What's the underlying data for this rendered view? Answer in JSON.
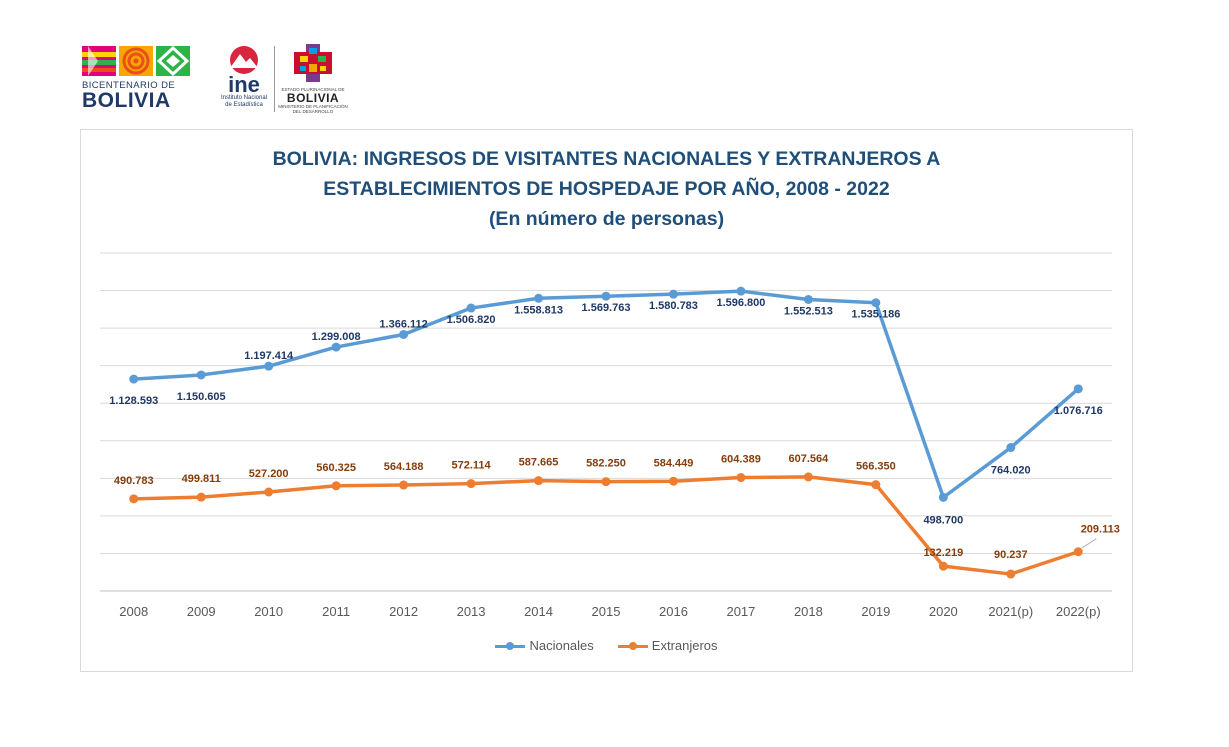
{
  "logos": {
    "bicentenario": {
      "line1": "BICENTENARIO DE",
      "line2": "BOLIVIA"
    },
    "ine": {
      "word": "ine",
      "sub1": "Instituto Nacional",
      "sub2": "de Estadística"
    },
    "estado": {
      "line1": "ESTADO PLURINACIONAL DE",
      "line2": "BOLIVIA",
      "line3": "MINISTERIO DE PLANIFICACIÓN DEL DESARROLLO"
    }
  },
  "colors": {
    "nacionales": "#5b9bd5",
    "extranjeros": "#ed7d31",
    "title": "#1f4e79",
    "label_nac": "#1f3864",
    "label_ext": "#843c0c"
  },
  "chart_data": {
    "type": "line",
    "title_lines": [
      "BOLIVIA: INGRESOS DE VISITANTES NACIONALES Y EXTRANJEROS A",
      "ESTABLECIMIENTOS DE HOSPEDAJE POR AÑO, 2008 - 2022",
      "(En número de personas)"
    ],
    "categories": [
      "2008",
      "2009",
      "2010",
      "2011",
      "2012",
      "2013",
      "2014",
      "2015",
      "2016",
      "2017",
      "2018",
      "2019",
      "2020",
      "2021(p)",
      "2022(p)"
    ],
    "ylim": [
      0,
      1800000
    ],
    "grid": true,
    "y_axis_labels": "hidden",
    "legend_position": "bottom",
    "series": [
      {
        "name": "Nacionales",
        "values": [
          1128593,
          1150605,
          1197414,
          1299008,
          1366112,
          1506820,
          1558813,
          1569763,
          1580783,
          1596800,
          1552513,
          1535186,
          498700,
          764020,
          1076716
        ],
        "labels": [
          "1.128.593",
          "1.150.605",
          "1.197.414",
          "1.299.008",
          "1.366.112",
          "1.506.820",
          "1.558.813",
          "1.569.763",
          "1.580.783",
          "1.596.800",
          "1.552.513",
          "1.535.186",
          "498.700",
          "764.020",
          "1.076.716"
        ]
      },
      {
        "name": "Extranjeros",
        "values": [
          490783,
          499811,
          527200,
          560325,
          564188,
          572114,
          587665,
          582250,
          584449,
          604389,
          607564,
          566350,
          132219,
          90237,
          209113
        ],
        "labels": [
          "490.783",
          "499.811",
          "527.200",
          "560.325",
          "564.188",
          "572.114",
          "587.665",
          "582.250",
          "584.449",
          "604.389",
          "607.564",
          "566.350",
          "132.219",
          "90.237",
          "209.113"
        ]
      }
    ]
  }
}
